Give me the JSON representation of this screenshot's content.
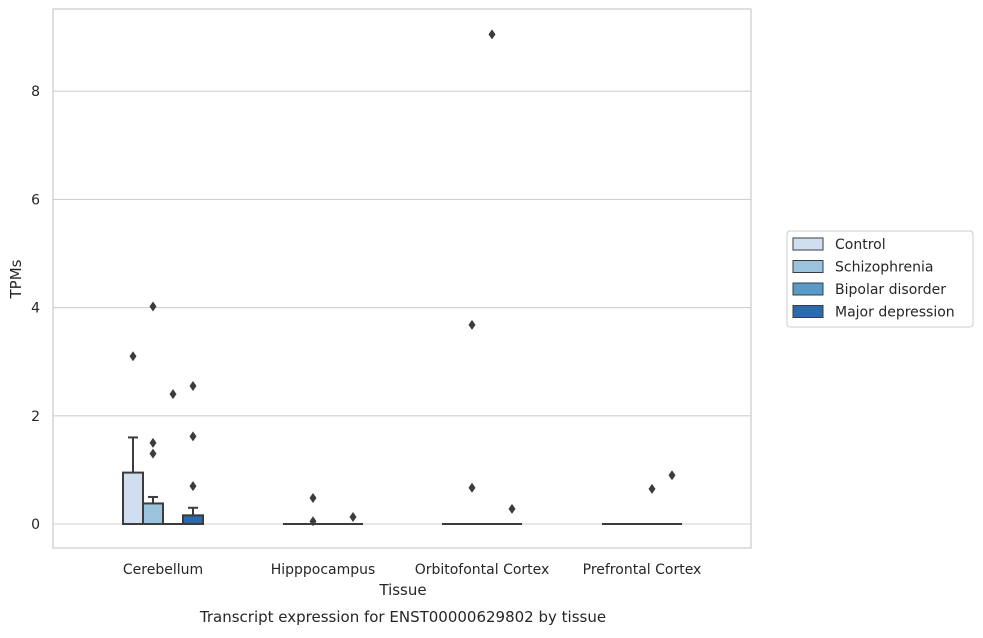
{
  "chart_data": {
    "type": "box",
    "title": "",
    "caption": "Transcript expression for ENST00000629802 by tissue",
    "xlabel": "Tissue",
    "ylabel": "TPMs",
    "categories": [
      "Cerebellum",
      "Hipppocampus",
      "Orbitofontal Cortex",
      "Prefrontal Cortex"
    ],
    "yticks": [
      0,
      2,
      4,
      6,
      8
    ],
    "ylim": [
      -0.45,
      9.5
    ],
    "grid": "horizontal",
    "legend_position": "right",
    "colors": {
      "Control": "#cfdff0",
      "Schizophrenia": "#9ac4de",
      "Bipolar disorder": "#5b9ac8",
      "Major depression": "#2a6aad",
      "box_edge": "#3c3c3c",
      "grid": "#d0d0d0",
      "axes_frame": "#cccccc"
    },
    "series": [
      {
        "name": "Control",
        "boxes": [
          {
            "q1": 0.0,
            "median": 0.0,
            "q3": 0.95,
            "whisker_low": 0.0,
            "whisker_high": 1.6,
            "outliers": [
              3.1
            ]
          },
          {
            "q1": 0.0,
            "median": 0.0,
            "q3": 0.0,
            "whisker_low": 0.0,
            "whisker_high": 0.0,
            "outliers": []
          },
          {
            "q1": 0.0,
            "median": 0.0,
            "q3": 0.0,
            "whisker_low": 0.0,
            "whisker_high": 0.0,
            "outliers": []
          },
          {
            "q1": 0.0,
            "median": 0.0,
            "q3": 0.0,
            "whisker_low": 0.0,
            "whisker_high": 0.0,
            "outliers": []
          }
        ]
      },
      {
        "name": "Schizophrenia",
        "boxes": [
          {
            "q1": 0.0,
            "median": 0.0,
            "q3": 0.38,
            "whisker_low": 0.0,
            "whisker_high": 0.5,
            "outliers": [
              1.3,
              1.5,
              4.02
            ]
          },
          {
            "q1": 0.0,
            "median": 0.0,
            "q3": 0.0,
            "whisker_low": 0.0,
            "whisker_high": 0.0,
            "outliers": [
              0.05,
              0.48
            ]
          },
          {
            "q1": 0.0,
            "median": 0.0,
            "q3": 0.0,
            "whisker_low": 0.0,
            "whisker_high": 0.0,
            "outliers": [
              0.67,
              3.68
            ]
          },
          {
            "q1": 0.0,
            "median": 0.0,
            "q3": 0.0,
            "whisker_low": 0.0,
            "whisker_high": 0.0,
            "outliers": []
          }
        ]
      },
      {
        "name": "Bipolar disorder",
        "boxes": [
          {
            "q1": 0.0,
            "median": 0.0,
            "q3": 0.0,
            "whisker_low": 0.0,
            "whisker_high": 0.0,
            "outliers": [
              2.4
            ]
          },
          {
            "q1": 0.0,
            "median": 0.0,
            "q3": 0.0,
            "whisker_low": 0.0,
            "whisker_high": 0.0,
            "outliers": []
          },
          {
            "q1": 0.0,
            "median": 0.0,
            "q3": 0.0,
            "whisker_low": 0.0,
            "whisker_high": 0.0,
            "outliers": [
              9.05
            ]
          },
          {
            "q1": 0.0,
            "median": 0.0,
            "q3": 0.0,
            "whisker_low": 0.0,
            "whisker_high": 0.0,
            "outliers": [
              0.65
            ]
          }
        ]
      },
      {
        "name": "Major depression",
        "boxes": [
          {
            "q1": 0.0,
            "median": 0.0,
            "q3": 0.16,
            "whisker_low": 0.0,
            "whisker_high": 0.3,
            "outliers": [
              0.7,
              1.62,
              2.55
            ]
          },
          {
            "q1": 0.0,
            "median": 0.0,
            "q3": 0.0,
            "whisker_low": 0.0,
            "whisker_high": 0.0,
            "outliers": [
              0.13
            ]
          },
          {
            "q1": 0.0,
            "median": 0.0,
            "q3": 0.0,
            "whisker_low": 0.0,
            "whisker_high": 0.0,
            "outliers": [
              0.28
            ]
          },
          {
            "q1": 0.0,
            "median": 0.0,
            "q3": 0.0,
            "whisker_low": 0.0,
            "whisker_high": 0.0,
            "outliers": [
              0.9
            ]
          }
        ]
      }
    ]
  }
}
